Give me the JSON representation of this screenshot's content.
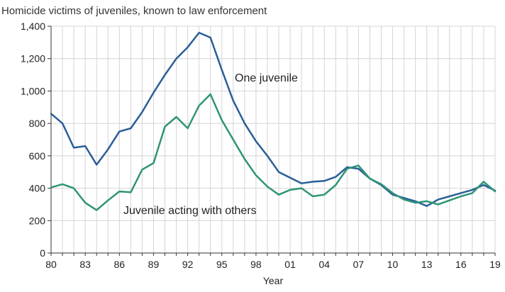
{
  "chart_data": {
    "type": "line",
    "title": "Homicide victims of juveniles, known to law enforcement",
    "xlabel": "Year",
    "ylabel": "",
    "x": [
      1980,
      1981,
      1982,
      1983,
      1984,
      1985,
      1986,
      1987,
      1988,
      1989,
      1990,
      1991,
      1992,
      1993,
      1994,
      1995,
      1996,
      1997,
      1998,
      1999,
      2000,
      2001,
      2002,
      2003,
      2004,
      2005,
      2006,
      2007,
      2008,
      2009,
      2010,
      2011,
      2012,
      2013,
      2014,
      2015,
      2016,
      2017,
      2018,
      2019
    ],
    "xlim": [
      1980,
      2019
    ],
    "ylim": [
      0,
      1400
    ],
    "x_ticks": [
      {
        "value": 1980,
        "label": "80"
      },
      {
        "value": 1983,
        "label": "83"
      },
      {
        "value": 1986,
        "label": "86"
      },
      {
        "value": 1989,
        "label": "89"
      },
      {
        "value": 1992,
        "label": "92"
      },
      {
        "value": 1995,
        "label": "95"
      },
      {
        "value": 1998,
        "label": "98"
      },
      {
        "value": 2001,
        "label": "01"
      },
      {
        "value": 2004,
        "label": "04"
      },
      {
        "value": 2007,
        "label": "07"
      },
      {
        "value": 2010,
        "label": "10"
      },
      {
        "value": 2013,
        "label": "13"
      },
      {
        "value": 2016,
        "label": "16"
      },
      {
        "value": 2019,
        "label": "19"
      }
    ],
    "y_ticks": [
      {
        "value": 0,
        "label": "0"
      },
      {
        "value": 200,
        "label": "200"
      },
      {
        "value": 400,
        "label": "400"
      },
      {
        "value": 600,
        "label": "600"
      },
      {
        "value": 800,
        "label": "800"
      },
      {
        "value": 1000,
        "label": "1,000"
      },
      {
        "value": 1200,
        "label": "1,200"
      },
      {
        "value": 1400,
        "label": "1,400"
      }
    ],
    "grid": true,
    "series": [
      {
        "name": "One juvenile",
        "color": "#2a5f97",
        "values": [
          860,
          800,
          650,
          660,
          545,
          640,
          750,
          770,
          870,
          990,
          1100,
          1200,
          1270,
          1360,
          1330,
          1130,
          940,
          800,
          690,
          600,
          500,
          465,
          430,
          440,
          445,
          470,
          530,
          520,
          460,
          420,
          360,
          340,
          320,
          290,
          330,
          350,
          370,
          390,
          420,
          385
        ]
      },
      {
        "name": "Juvenile acting with others",
        "color": "#2e9475",
        "values": [
          405,
          425,
          400,
          310,
          265,
          325,
          380,
          375,
          515,
          555,
          780,
          840,
          770,
          910,
          980,
          820,
          700,
          580,
          480,
          410,
          360,
          390,
          400,
          350,
          360,
          420,
          520,
          540,
          460,
          425,
          370,
          330,
          310,
          320,
          300,
          325,
          350,
          370,
          440,
          380
        ]
      }
    ]
  }
}
